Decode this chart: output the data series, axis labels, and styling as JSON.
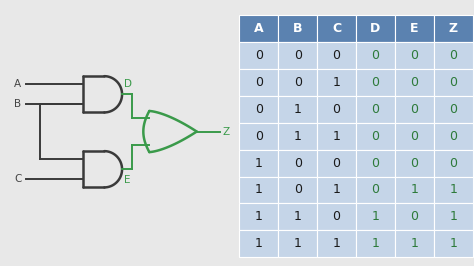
{
  "background_color": "#e8e8e8",
  "table_bg": "#c5d5e8",
  "header_bg": "#5b82b0",
  "header_text_color": "#ffffff",
  "abc_text_color": "#1a1a1a",
  "dez_text_color": "#2d7a3a",
  "gate_color": "#3a3a3a",
  "wire_color": "#3a9a4a",
  "columns": [
    "A",
    "B",
    "C",
    "D",
    "E",
    "Z"
  ],
  "rows": [
    [
      0,
      0,
      0,
      0,
      0,
      0
    ],
    [
      0,
      0,
      1,
      0,
      0,
      0
    ],
    [
      0,
      1,
      0,
      0,
      0,
      0
    ],
    [
      0,
      1,
      1,
      0,
      0,
      0
    ],
    [
      1,
      0,
      0,
      0,
      0,
      0
    ],
    [
      1,
      0,
      1,
      0,
      1,
      1
    ],
    [
      1,
      1,
      0,
      1,
      0,
      1
    ],
    [
      1,
      1,
      1,
      1,
      1,
      1
    ]
  ],
  "label_color": "#444444",
  "label_de_color": "#3a9a4a"
}
